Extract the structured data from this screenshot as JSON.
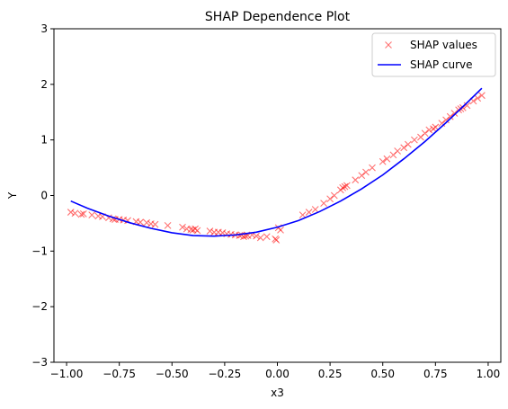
{
  "chart_data": {
    "type": "scatter",
    "title": "SHAP Dependence Plot",
    "xlabel": "x3",
    "ylabel": "Y",
    "xlim": [
      -1.06,
      1.06
    ],
    "ylim": [
      -3,
      3
    ],
    "xticks": [
      -1.0,
      -0.75,
      -0.5,
      -0.25,
      0.0,
      0.25,
      0.5,
      0.75,
      1.0
    ],
    "xtick_labels": [
      "−1.00",
      "−0.75",
      "−0.50",
      "−0.25",
      "0.00",
      "0.25",
      "0.50",
      "0.75",
      "1.00"
    ],
    "yticks": [
      -3,
      -2,
      -1,
      0,
      1,
      2,
      3
    ],
    "ytick_labels": [
      "−3",
      "−2",
      "−1",
      "0",
      "1",
      "2",
      "3"
    ],
    "grid": false,
    "legend_position": "top-right",
    "series": [
      {
        "name": "SHAP values",
        "kind": "scatter",
        "marker": "x",
        "color": "#ff0000",
        "opacity": 0.55,
        "points": [
          [
            -0.98,
            -0.3
          ],
          [
            -0.96,
            -0.32
          ],
          [
            -0.93,
            -0.34
          ],
          [
            -0.92,
            -0.33
          ],
          [
            -0.88,
            -0.35
          ],
          [
            -0.85,
            -0.37
          ],
          [
            -0.83,
            -0.38
          ],
          [
            -0.8,
            -0.4
          ],
          [
            -0.78,
            -0.42
          ],
          [
            -0.77,
            -0.43
          ],
          [
            -0.75,
            -0.43
          ],
          [
            -0.73,
            -0.44
          ],
          [
            -0.71,
            -0.45
          ],
          [
            -0.67,
            -0.47
          ],
          [
            -0.65,
            -0.48
          ],
          [
            -0.62,
            -0.49
          ],
          [
            -0.6,
            -0.51
          ],
          [
            -0.58,
            -0.52
          ],
          [
            -0.52,
            -0.54
          ],
          [
            -0.45,
            -0.57
          ],
          [
            -0.43,
            -0.6
          ],
          [
            -0.41,
            -0.61
          ],
          [
            -0.4,
            -0.62
          ],
          [
            -0.39,
            -0.6
          ],
          [
            -0.38,
            -0.63
          ],
          [
            -0.32,
            -0.64
          ],
          [
            -0.3,
            -0.66
          ],
          [
            -0.28,
            -0.66
          ],
          [
            -0.26,
            -0.67
          ],
          [
            -0.24,
            -0.69
          ],
          [
            -0.22,
            -0.7
          ],
          [
            -0.2,
            -0.71
          ],
          [
            -0.18,
            -0.72
          ],
          [
            -0.17,
            -0.71
          ],
          [
            -0.16,
            -0.74
          ],
          [
            -0.15,
            -0.73
          ],
          [
            -0.14,
            -0.72
          ],
          [
            -0.12,
            -0.71
          ],
          [
            -0.1,
            -0.73
          ],
          [
            -0.08,
            -0.76
          ],
          [
            -0.05,
            -0.74
          ],
          [
            -0.01,
            -0.78
          ],
          [
            -0.005,
            -0.8
          ],
          [
            0.005,
            -0.58
          ],
          [
            0.015,
            -0.62
          ],
          [
            0.12,
            -0.35
          ],
          [
            0.15,
            -0.3
          ],
          [
            0.18,
            -0.25
          ],
          [
            0.22,
            -0.14
          ],
          [
            0.25,
            -0.06
          ],
          [
            0.27,
            0.0
          ],
          [
            0.3,
            0.1
          ],
          [
            0.31,
            0.14
          ],
          [
            0.32,
            0.16
          ],
          [
            0.33,
            0.18
          ],
          [
            0.37,
            0.28
          ],
          [
            0.4,
            0.36
          ],
          [
            0.42,
            0.42
          ],
          [
            0.45,
            0.5
          ],
          [
            0.5,
            0.61
          ],
          [
            0.52,
            0.66
          ],
          [
            0.55,
            0.73
          ],
          [
            0.57,
            0.8
          ],
          [
            0.6,
            0.86
          ],
          [
            0.62,
            0.92
          ],
          [
            0.65,
            1.0
          ],
          [
            0.68,
            1.05
          ],
          [
            0.7,
            1.12
          ],
          [
            0.72,
            1.18
          ],
          [
            0.74,
            1.2
          ],
          [
            0.75,
            1.23
          ],
          [
            0.78,
            1.3
          ],
          [
            0.8,
            1.36
          ],
          [
            0.82,
            1.42
          ],
          [
            0.84,
            1.48
          ],
          [
            0.86,
            1.54
          ],
          [
            0.87,
            1.56
          ],
          [
            0.88,
            1.58
          ],
          [
            0.9,
            1.62
          ],
          [
            0.93,
            1.7
          ],
          [
            0.95,
            1.75
          ],
          [
            0.97,
            1.8
          ]
        ]
      },
      {
        "name": "SHAP curve",
        "kind": "line",
        "color": "#0000ff",
        "points": [
          [
            -0.98,
            -0.1
          ],
          [
            -0.9,
            -0.23
          ],
          [
            -0.8,
            -0.37
          ],
          [
            -0.7,
            -0.49
          ],
          [
            -0.6,
            -0.59
          ],
          [
            -0.5,
            -0.67
          ],
          [
            -0.4,
            -0.72
          ],
          [
            -0.3,
            -0.73
          ],
          [
            -0.2,
            -0.71
          ],
          [
            -0.1,
            -0.66
          ],
          [
            0.0,
            -0.57
          ],
          [
            0.1,
            -0.45
          ],
          [
            0.2,
            -0.29
          ],
          [
            0.3,
            -0.1
          ],
          [
            0.4,
            0.12
          ],
          [
            0.5,
            0.37
          ],
          [
            0.6,
            0.66
          ],
          [
            0.7,
            0.97
          ],
          [
            0.8,
            1.31
          ],
          [
            0.9,
            1.67
          ],
          [
            0.97,
            1.93
          ]
        ]
      }
    ]
  }
}
